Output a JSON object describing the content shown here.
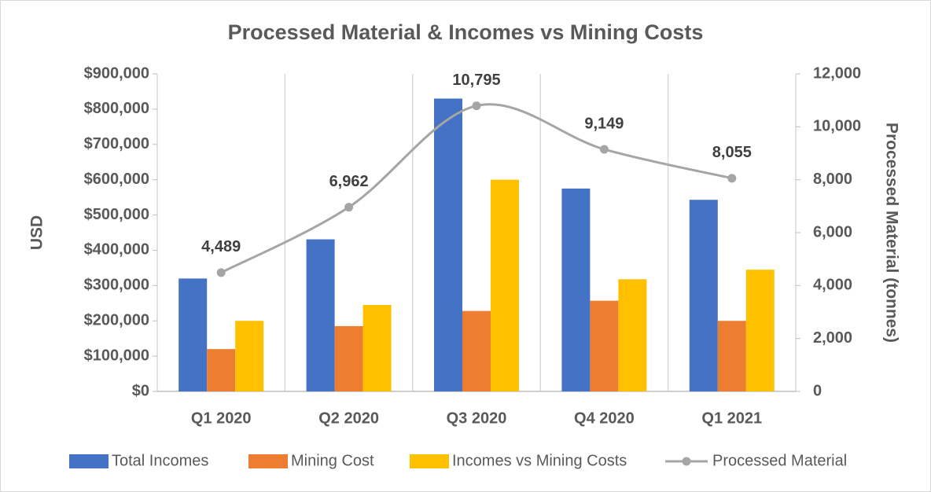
{
  "chart_data": {
    "type": "bar",
    "title": "Processed Material & Incomes vs Mining Costs",
    "y_label": "USD",
    "y2_label": "Processed Material (tonnes)",
    "categories": [
      "Q1 2020",
      "Q2 2020",
      "Q3 2020",
      "Q4 2020",
      "Q1 2021"
    ],
    "series": [
      {
        "name": "Total Incomes",
        "color": "#4472c4",
        "type": "bar",
        "values": [
          320000,
          431000,
          830000,
          575000,
          543000
        ]
      },
      {
        "name": "Mining Cost",
        "color": "#ed7d31",
        "type": "bar",
        "values": [
          120000,
          185000,
          228000,
          257000,
          200000
        ]
      },
      {
        "name": "Incomes vs Mining Costs",
        "color": "#ffc000",
        "type": "bar",
        "values": [
          200000,
          245000,
          600000,
          318000,
          345000
        ]
      },
      {
        "name": "Processed Material",
        "color": "#a5a5a5",
        "type": "line",
        "axis": "y2",
        "smooth": true,
        "values": [
          4489,
          6962,
          10795,
          9149,
          8055
        ],
        "value_labels": [
          "4,489",
          "6,962",
          "10,795",
          "9,149",
          "8,055"
        ]
      }
    ],
    "ylim": [
      0,
      900000
    ],
    "yticks": [
      {
        "value": 0,
        "label": "$0"
      },
      {
        "value": 100000,
        "label": "$100,000"
      },
      {
        "value": 200000,
        "label": "$200,000"
      },
      {
        "value": 300000,
        "label": "$300,000"
      },
      {
        "value": 400000,
        "label": "$400,000"
      },
      {
        "value": 500000,
        "label": "$500,000"
      },
      {
        "value": 600000,
        "label": "$600,000"
      },
      {
        "value": 700000,
        "label": "$700,000"
      },
      {
        "value": 800000,
        "label": "$800,000"
      },
      {
        "value": 900000,
        "label": "$900,000"
      }
    ],
    "y2lim": [
      0,
      12000
    ],
    "y2ticks": [
      0,
      {
        "value": 2000,
        "label": "2,000"
      },
      {
        "value": 4000,
        "label": "4,000"
      },
      {
        "value": 6000,
        "label": "6,000"
      },
      {
        "value": 8000,
        "label": "8,000"
      },
      {
        "value": 10000,
        "label": "10,000"
      },
      {
        "value": 12000,
        "label": "12,000"
      }
    ],
    "legend": "bottom"
  }
}
